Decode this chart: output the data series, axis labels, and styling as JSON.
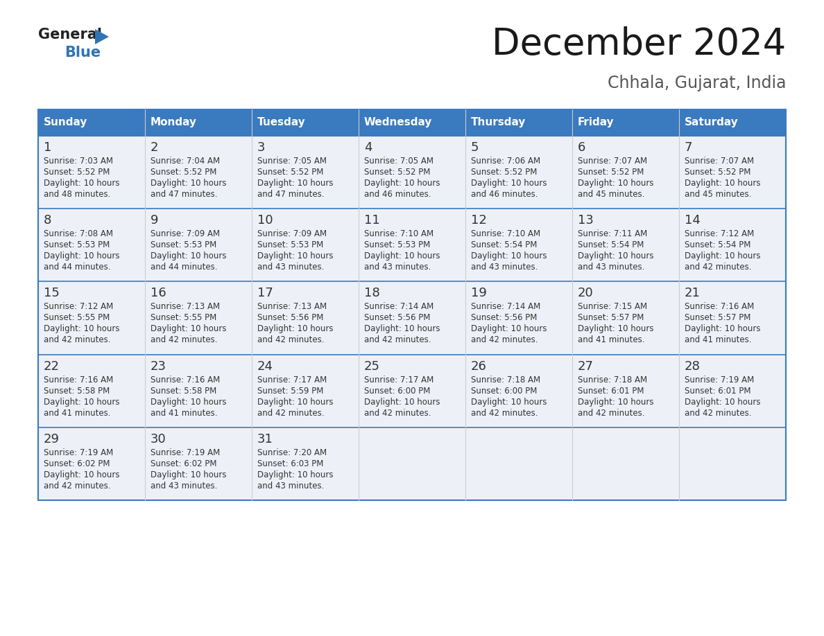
{
  "title": "December 2024",
  "subtitle": "Chhala, Gujarat, India",
  "header_bg_color": "#3a7abf",
  "header_text_color": "#ffffff",
  "cell_bg_color": "#edf1f7",
  "separator_color": "#3a7abf",
  "text_color": "#333333",
  "day_headers": [
    "Sunday",
    "Monday",
    "Tuesday",
    "Wednesday",
    "Thursday",
    "Friday",
    "Saturday"
  ],
  "days_data": [
    {
      "day": 1,
      "col": 0,
      "row": 0,
      "sunrise": "7:03 AM",
      "sunset": "5:52 PM",
      "daylight_hours": 10,
      "daylight_minutes": 48
    },
    {
      "day": 2,
      "col": 1,
      "row": 0,
      "sunrise": "7:04 AM",
      "sunset": "5:52 PM",
      "daylight_hours": 10,
      "daylight_minutes": 47
    },
    {
      "day": 3,
      "col": 2,
      "row": 0,
      "sunrise": "7:05 AM",
      "sunset": "5:52 PM",
      "daylight_hours": 10,
      "daylight_minutes": 47
    },
    {
      "day": 4,
      "col": 3,
      "row": 0,
      "sunrise": "7:05 AM",
      "sunset": "5:52 PM",
      "daylight_hours": 10,
      "daylight_minutes": 46
    },
    {
      "day": 5,
      "col": 4,
      "row": 0,
      "sunrise": "7:06 AM",
      "sunset": "5:52 PM",
      "daylight_hours": 10,
      "daylight_minutes": 46
    },
    {
      "day": 6,
      "col": 5,
      "row": 0,
      "sunrise": "7:07 AM",
      "sunset": "5:52 PM",
      "daylight_hours": 10,
      "daylight_minutes": 45
    },
    {
      "day": 7,
      "col": 6,
      "row": 0,
      "sunrise": "7:07 AM",
      "sunset": "5:52 PM",
      "daylight_hours": 10,
      "daylight_minutes": 45
    },
    {
      "day": 8,
      "col": 0,
      "row": 1,
      "sunrise": "7:08 AM",
      "sunset": "5:53 PM",
      "daylight_hours": 10,
      "daylight_minutes": 44
    },
    {
      "day": 9,
      "col": 1,
      "row": 1,
      "sunrise": "7:09 AM",
      "sunset": "5:53 PM",
      "daylight_hours": 10,
      "daylight_minutes": 44
    },
    {
      "day": 10,
      "col": 2,
      "row": 1,
      "sunrise": "7:09 AM",
      "sunset": "5:53 PM",
      "daylight_hours": 10,
      "daylight_minutes": 43
    },
    {
      "day": 11,
      "col": 3,
      "row": 1,
      "sunrise": "7:10 AM",
      "sunset": "5:53 PM",
      "daylight_hours": 10,
      "daylight_minutes": 43
    },
    {
      "day": 12,
      "col": 4,
      "row": 1,
      "sunrise": "7:10 AM",
      "sunset": "5:54 PM",
      "daylight_hours": 10,
      "daylight_minutes": 43
    },
    {
      "day": 13,
      "col": 5,
      "row": 1,
      "sunrise": "7:11 AM",
      "sunset": "5:54 PM",
      "daylight_hours": 10,
      "daylight_minutes": 43
    },
    {
      "day": 14,
      "col": 6,
      "row": 1,
      "sunrise": "7:12 AM",
      "sunset": "5:54 PM",
      "daylight_hours": 10,
      "daylight_minutes": 42
    },
    {
      "day": 15,
      "col": 0,
      "row": 2,
      "sunrise": "7:12 AM",
      "sunset": "5:55 PM",
      "daylight_hours": 10,
      "daylight_minutes": 42
    },
    {
      "day": 16,
      "col": 1,
      "row": 2,
      "sunrise": "7:13 AM",
      "sunset": "5:55 PM",
      "daylight_hours": 10,
      "daylight_minutes": 42
    },
    {
      "day": 17,
      "col": 2,
      "row": 2,
      "sunrise": "7:13 AM",
      "sunset": "5:56 PM",
      "daylight_hours": 10,
      "daylight_minutes": 42
    },
    {
      "day": 18,
      "col": 3,
      "row": 2,
      "sunrise": "7:14 AM",
      "sunset": "5:56 PM",
      "daylight_hours": 10,
      "daylight_minutes": 42
    },
    {
      "day": 19,
      "col": 4,
      "row": 2,
      "sunrise": "7:14 AM",
      "sunset": "5:56 PM",
      "daylight_hours": 10,
      "daylight_minutes": 42
    },
    {
      "day": 20,
      "col": 5,
      "row": 2,
      "sunrise": "7:15 AM",
      "sunset": "5:57 PM",
      "daylight_hours": 10,
      "daylight_minutes": 41
    },
    {
      "day": 21,
      "col": 6,
      "row": 2,
      "sunrise": "7:16 AM",
      "sunset": "5:57 PM",
      "daylight_hours": 10,
      "daylight_minutes": 41
    },
    {
      "day": 22,
      "col": 0,
      "row": 3,
      "sunrise": "7:16 AM",
      "sunset": "5:58 PM",
      "daylight_hours": 10,
      "daylight_minutes": 41
    },
    {
      "day": 23,
      "col": 1,
      "row": 3,
      "sunrise": "7:16 AM",
      "sunset": "5:58 PM",
      "daylight_hours": 10,
      "daylight_minutes": 41
    },
    {
      "day": 24,
      "col": 2,
      "row": 3,
      "sunrise": "7:17 AM",
      "sunset": "5:59 PM",
      "daylight_hours": 10,
      "daylight_minutes": 42
    },
    {
      "day": 25,
      "col": 3,
      "row": 3,
      "sunrise": "7:17 AM",
      "sunset": "6:00 PM",
      "daylight_hours": 10,
      "daylight_minutes": 42
    },
    {
      "day": 26,
      "col": 4,
      "row": 3,
      "sunrise": "7:18 AM",
      "sunset": "6:00 PM",
      "daylight_hours": 10,
      "daylight_minutes": 42
    },
    {
      "day": 27,
      "col": 5,
      "row": 3,
      "sunrise": "7:18 AM",
      "sunset": "6:01 PM",
      "daylight_hours": 10,
      "daylight_minutes": 42
    },
    {
      "day": 28,
      "col": 6,
      "row": 3,
      "sunrise": "7:19 AM",
      "sunset": "6:01 PM",
      "daylight_hours": 10,
      "daylight_minutes": 42
    },
    {
      "day": 29,
      "col": 0,
      "row": 4,
      "sunrise": "7:19 AM",
      "sunset": "6:02 PM",
      "daylight_hours": 10,
      "daylight_minutes": 42
    },
    {
      "day": 30,
      "col": 1,
      "row": 4,
      "sunrise": "7:19 AM",
      "sunset": "6:02 PM",
      "daylight_hours": 10,
      "daylight_minutes": 43
    },
    {
      "day": 31,
      "col": 2,
      "row": 4,
      "sunrise": "7:20 AM",
      "sunset": "6:03 PM",
      "daylight_hours": 10,
      "daylight_minutes": 43
    }
  ],
  "num_rows": 5,
  "num_cols": 7,
  "fig_width": 11.88,
  "fig_height": 9.18,
  "dpi": 100
}
